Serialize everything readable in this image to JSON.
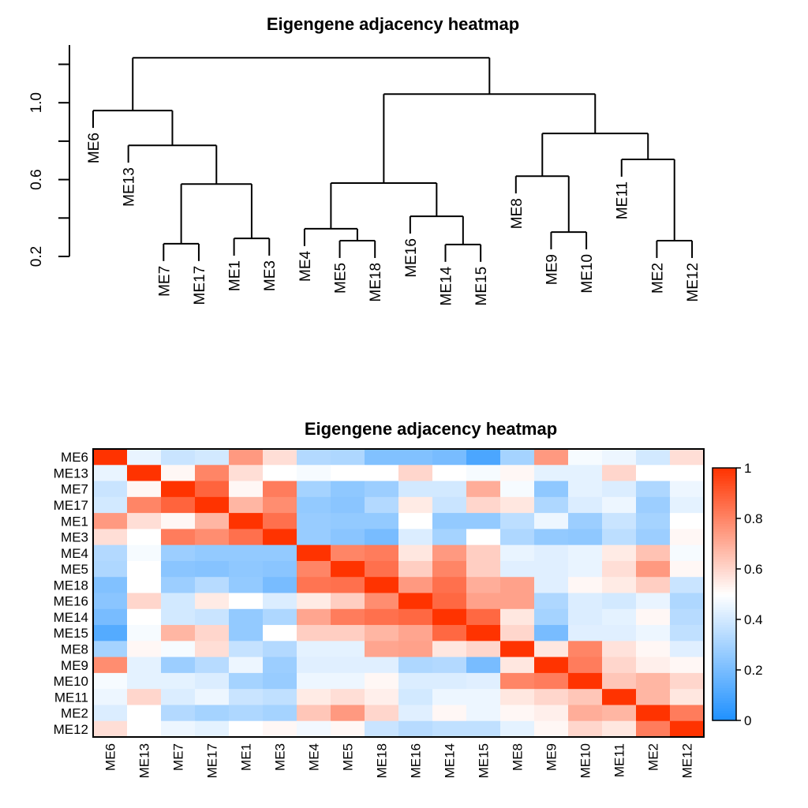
{
  "chart_data": [
    {
      "type": "dendrogram",
      "title": "Eigengene adjacency heatmap",
      "yaxis": {
        "ticks": [
          0.2,
          0.4,
          0.6,
          0.8,
          1.0,
          1.2
        ],
        "tick_labels": [
          "0.2",
          "",
          "0.6",
          "",
          "1.0",
          ""
        ],
        "range": [
          0.2,
          1.3
        ]
      },
      "leaf_order": [
        "ME6",
        "ME13",
        "ME7",
        "ME17",
        "ME1",
        "ME3",
        "ME4",
        "ME5",
        "ME18",
        "ME16",
        "ME14",
        "ME15",
        "ME8",
        "ME9",
        "ME10",
        "ME11",
        "ME2",
        "ME12"
      ],
      "hang": 0.09,
      "tree": {
        "h": 1.234,
        "c": [
          {
            "h": 0.959,
            "c": [
              "ME6",
              {
                "h": 0.778,
                "c": [
                  "ME13",
                  {
                    "h": 0.577,
                    "c": [
                      {
                        "h": 0.266,
                        "c": [
                          "ME7",
                          "ME17"
                        ]
                      },
                      {
                        "h": 0.294,
                        "c": [
                          "ME1",
                          "ME3"
                        ]
                      }
                    ]
                  }
                ]
              }
            ]
          },
          {
            "h": 1.045,
            "c": [
              {
                "h": 0.582,
                "c": [
                  {
                    "h": 0.344,
                    "c": [
                      "ME4",
                      {
                        "h": 0.282,
                        "c": [
                          "ME5",
                          "ME18"
                        ]
                      }
                    ]
                  },
                  {
                    "h": 0.409,
                    "c": [
                      "ME16",
                      {
                        "h": 0.262,
                        "c": [
                          "ME14",
                          "ME15"
                        ]
                      }
                    ]
                  }
                ]
              },
              {
                "h": 0.84,
                "c": [
                  {
                    "h": 0.618,
                    "c": [
                      "ME8",
                      {
                        "h": 0.327,
                        "c": [
                          "ME9",
                          "ME10"
                        ]
                      }
                    ]
                  },
                  {
                    "h": 0.705,
                    "c": [
                      "ME11",
                      {
                        "h": 0.282,
                        "c": [
                          "ME2",
                          "ME12"
                        ]
                      }
                    ]
                  }
                ]
              }
            ]
          }
        ]
      }
    },
    {
      "type": "heatmap",
      "title": "Eigengene adjacency heatmap",
      "rows": [
        "ME6",
        "ME13",
        "ME7",
        "ME17",
        "ME1",
        "ME3",
        "ME4",
        "ME5",
        "ME18",
        "ME16",
        "ME14",
        "ME15",
        "ME8",
        "ME9",
        "ME10",
        "ME11",
        "ME2",
        "ME12"
      ],
      "cols": [
        "ME6",
        "ME13",
        "ME7",
        "ME17",
        "ME1",
        "ME3",
        "ME4",
        "ME5",
        "ME18",
        "ME16",
        "ME14",
        "ME15",
        "ME8",
        "ME9",
        "ME10",
        "ME11",
        "ME2",
        "ME12"
      ],
      "values": [
        [
          1,
          0.45,
          0.38,
          0.4,
          0.75,
          0.58,
          0.33,
          0.32,
          0.22,
          0.22,
          0.2,
          0.1,
          0.3,
          0.75,
          0.48,
          0.46,
          0.4,
          0.58
        ],
        [
          0.45,
          1,
          0.52,
          0.8,
          0.58,
          0.5,
          0.48,
          0.5,
          0.5,
          0.6,
          0.5,
          0.48,
          0.52,
          0.44,
          0.44,
          0.6,
          0.5,
          0.5
        ],
        [
          0.38,
          0.52,
          1,
          0.88,
          0.52,
          0.82,
          0.3,
          0.25,
          0.28,
          0.4,
          0.4,
          0.7,
          0.48,
          0.25,
          0.44,
          0.42,
          0.32,
          0.46
        ],
        [
          0.4,
          0.8,
          0.88,
          1,
          0.68,
          0.78,
          0.26,
          0.24,
          0.33,
          0.55,
          0.38,
          0.6,
          0.56,
          0.32,
          0.42,
          0.46,
          0.28,
          0.44
        ],
        [
          0.75,
          0.58,
          0.52,
          0.68,
          1,
          0.85,
          0.27,
          0.26,
          0.26,
          0.5,
          0.26,
          0.26,
          0.35,
          0.46,
          0.28,
          0.38,
          0.3,
          0.5
        ],
        [
          0.58,
          0.5,
          0.82,
          0.78,
          0.85,
          1,
          0.27,
          0.24,
          0.2,
          0.42,
          0.3,
          0.5,
          0.32,
          0.26,
          0.25,
          0.35,
          0.28,
          0.52
        ],
        [
          0.33,
          0.48,
          0.28,
          0.26,
          0.26,
          0.26,
          1,
          0.8,
          0.82,
          0.56,
          0.75,
          0.62,
          0.45,
          0.43,
          0.45,
          0.55,
          0.65,
          0.48
        ],
        [
          0.32,
          0.5,
          0.24,
          0.23,
          0.25,
          0.24,
          0.8,
          1,
          0.85,
          0.62,
          0.8,
          0.62,
          0.43,
          0.43,
          0.45,
          0.58,
          0.75,
          0.52
        ],
        [
          0.22,
          0.5,
          0.28,
          0.34,
          0.26,
          0.2,
          0.84,
          0.85,
          1,
          0.75,
          0.85,
          0.7,
          0.73,
          0.43,
          0.52,
          0.55,
          0.62,
          0.38
        ],
        [
          0.24,
          0.6,
          0.4,
          0.55,
          0.5,
          0.42,
          0.55,
          0.62,
          0.78,
          1,
          0.87,
          0.73,
          0.73,
          0.32,
          0.42,
          0.4,
          0.45,
          0.32
        ],
        [
          0.2,
          0.5,
          0.4,
          0.38,
          0.26,
          0.32,
          0.72,
          0.82,
          0.85,
          0.87,
          1,
          0.87,
          0.56,
          0.3,
          0.42,
          0.44,
          0.52,
          0.34
        ],
        [
          0.12,
          0.48,
          0.68,
          0.6,
          0.26,
          0.5,
          0.62,
          0.62,
          0.68,
          0.72,
          0.87,
          1,
          0.6,
          0.2,
          0.43,
          0.43,
          0.46,
          0.36
        ],
        [
          0.3,
          0.52,
          0.48,
          0.58,
          0.37,
          0.33,
          0.44,
          0.44,
          0.72,
          0.73,
          0.56,
          0.6,
          1,
          0.56,
          0.8,
          0.57,
          0.52,
          0.43
        ],
        [
          0.78,
          0.44,
          0.28,
          0.34,
          0.46,
          0.28,
          0.43,
          0.43,
          0.43,
          0.32,
          0.33,
          0.2,
          0.56,
          1,
          0.82,
          0.6,
          0.54,
          0.52
        ],
        [
          0.48,
          0.44,
          0.44,
          0.42,
          0.3,
          0.27,
          0.46,
          0.46,
          0.52,
          0.42,
          0.42,
          0.43,
          0.8,
          0.82,
          1,
          0.64,
          0.68,
          0.6
        ],
        [
          0.46,
          0.6,
          0.42,
          0.46,
          0.38,
          0.36,
          0.55,
          0.58,
          0.54,
          0.4,
          0.46,
          0.46,
          0.56,
          0.6,
          0.64,
          1,
          0.68,
          0.56
        ],
        [
          0.42,
          0.5,
          0.33,
          0.3,
          0.32,
          0.3,
          0.64,
          0.75,
          0.6,
          0.43,
          0.52,
          0.46,
          0.52,
          0.54,
          0.7,
          0.68,
          1,
          0.82
        ],
        [
          0.58,
          0.5,
          0.46,
          0.44,
          0.5,
          0.52,
          0.47,
          0.52,
          0.38,
          0.34,
          0.36,
          0.36,
          0.44,
          0.52,
          0.6,
          0.56,
          0.82,
          1
        ]
      ],
      "zlim": [
        0,
        1
      ],
      "colorbar": {
        "ticks": [
          0,
          0.2,
          0.4,
          0.6,
          0.8,
          1
        ],
        "tick_labels": [
          "0",
          "0.2",
          "0.4",
          "0.6",
          "0.8",
          "1"
        ]
      },
      "colors": {
        "low": "#1E90FF",
        "mid": "#FFFFFF",
        "high": "#FF3300"
      }
    }
  ]
}
